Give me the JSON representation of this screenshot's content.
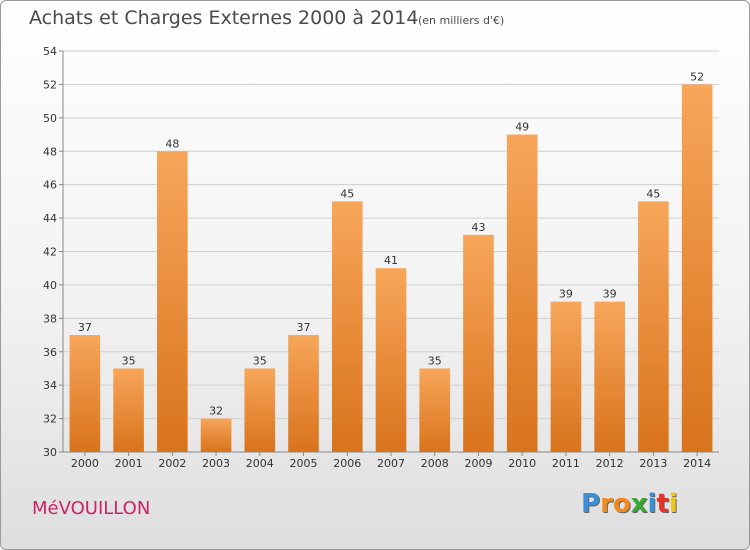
{
  "header": {
    "title": "Achats et Charges Externes 2000 à 2014",
    "subtitle": "(en milliers d'€)"
  },
  "footer": {
    "commune": "MéVOUILLON",
    "logo_letters": [
      "P",
      "r",
      "o",
      "x",
      "i",
      "t",
      "i"
    ],
    "logo_colors": [
      "#3a8fd6",
      "#f08a1c",
      "#f08a1c",
      "#39a935",
      "#3a8fd6",
      "#e6332a",
      "#f0c419"
    ]
  },
  "colors": {
    "bar_top": "#f7a65a",
    "bar_bottom": "#d9731c",
    "grid": "#d0d0d0",
    "text": "#333333"
  },
  "chart_data": {
    "type": "bar",
    "categories": [
      "2000",
      "2001",
      "2002",
      "2003",
      "2004",
      "2005",
      "2006",
      "2007",
      "2008",
      "2009",
      "2010",
      "2011",
      "2012",
      "2013",
      "2014"
    ],
    "values": [
      37,
      35,
      48,
      32,
      35,
      37,
      45,
      41,
      35,
      43,
      49,
      39,
      39,
      45,
      52
    ],
    "data_labels": [
      "37",
      "35",
      "48",
      "32",
      "35",
      "37",
      "45",
      "41",
      "35",
      "43",
      "49",
      "39",
      "39",
      "45",
      "52"
    ],
    "yticks": [
      "30",
      "32",
      "34",
      "36",
      "38",
      "40",
      "42",
      "44",
      "46",
      "48",
      "50",
      "52",
      "54"
    ],
    "ylim": [
      30,
      54
    ],
    "grid": true,
    "xlabel": "",
    "ylabel": ""
  }
}
